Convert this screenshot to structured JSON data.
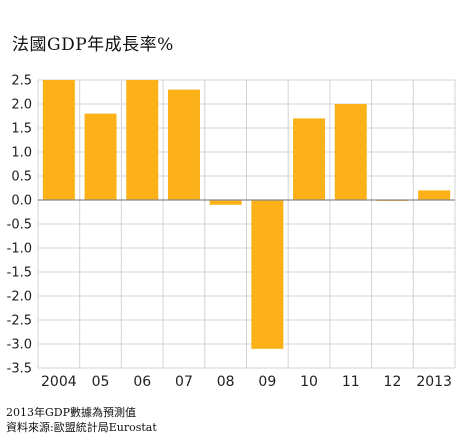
{
  "chart_data": {
    "type": "bar",
    "title": "法國GDP年成長率%",
    "categories": [
      "2004",
      "05",
      "06",
      "07",
      "08",
      "09",
      "10",
      "11",
      "12",
      "2013"
    ],
    "values": [
      2.5,
      1.8,
      2.5,
      2.3,
      -0.1,
      -3.1,
      1.7,
      2.0,
      0.0,
      0.2
    ],
    "ylim": [
      -3.5,
      2.5
    ],
    "yticks": [
      "2.5",
      "2.0",
      "1.5",
      "1.0",
      "0.5",
      "0.0",
      "-0.5",
      "-1.0",
      "-1.5",
      "-2.0",
      "-2.5",
      "-3.0",
      "-3.5"
    ],
    "bar_color": "#FBB117",
    "grid": true
  },
  "notes": {
    "line1": "2013年GDP數據為預測值",
    "line2": "資料來源:歐盟統計局Eurostat"
  }
}
